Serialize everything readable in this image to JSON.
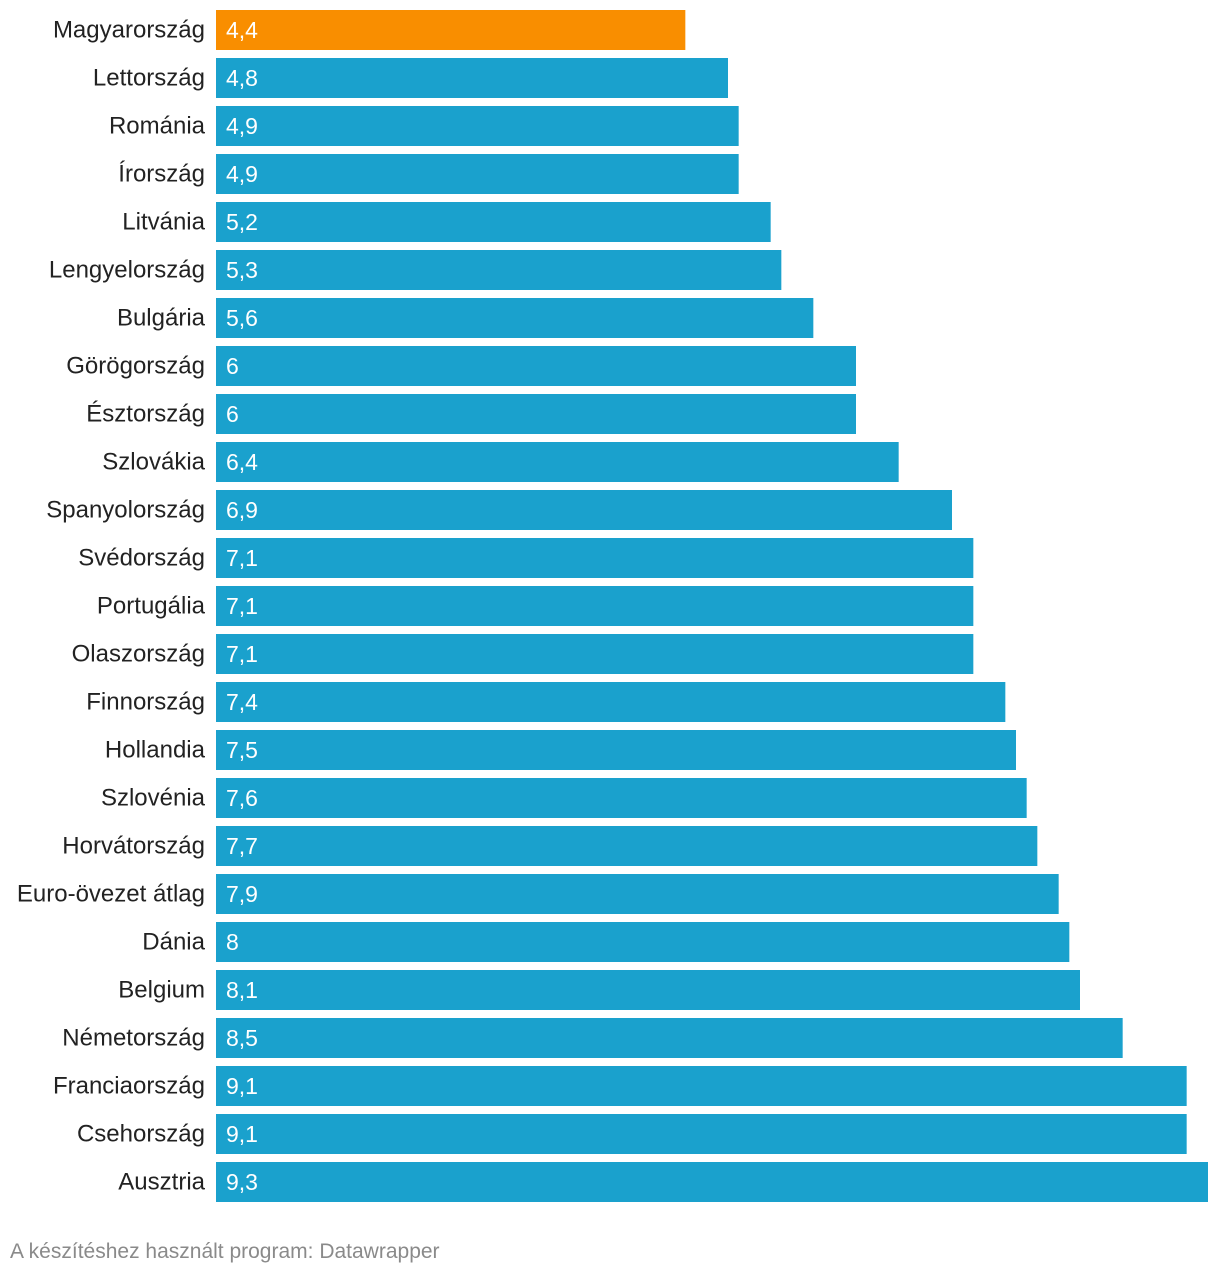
{
  "chart_data": {
    "type": "bar",
    "orientation": "horizontal",
    "categories": [
      "Magyarország",
      "Lettország",
      "Románia",
      "Írország",
      "Litvánia",
      "Lengyelország",
      "Bulgária",
      "Görögország",
      "Észtország",
      "Szlovákia",
      "Spanyolország",
      "Svédország",
      "Portugália",
      "Olaszország",
      "Finnország",
      "Hollandia",
      "Szlovénia",
      "Horvátország",
      "Euro-övezet átlag",
      "Dánia",
      "Belgium",
      "Németország",
      "Franciaország",
      "Csehország",
      "Ausztria"
    ],
    "values": [
      4.4,
      4.8,
      4.9,
      4.9,
      5.2,
      5.3,
      5.6,
      6,
      6,
      6.4,
      6.9,
      7.1,
      7.1,
      7.1,
      7.4,
      7.5,
      7.6,
      7.7,
      7.9,
      8,
      8.1,
      8.5,
      9.1,
      9.1,
      9.3
    ],
    "value_labels": [
      "4,4",
      "4,8",
      "4,9",
      "4,9",
      "5,2",
      "5,3",
      "5,6",
      "6",
      "6",
      "6,4",
      "6,9",
      "7,1",
      "7,1",
      "7,1",
      "7,4",
      "7,5",
      "7,6",
      "7,7",
      "7,9",
      "8",
      "8,1",
      "8,5",
      "9,1",
      "9,1",
      "9,3"
    ],
    "highlight_index": 0,
    "xlim": [
      0,
      9.3
    ],
    "title": "",
    "xlabel": "",
    "ylabel": "",
    "grid": false,
    "colors": {
      "default": "#1aa1cd",
      "highlight": "#f98e00"
    }
  },
  "footer": {
    "credit": "A készítéshez használt program: Datawrapper"
  }
}
